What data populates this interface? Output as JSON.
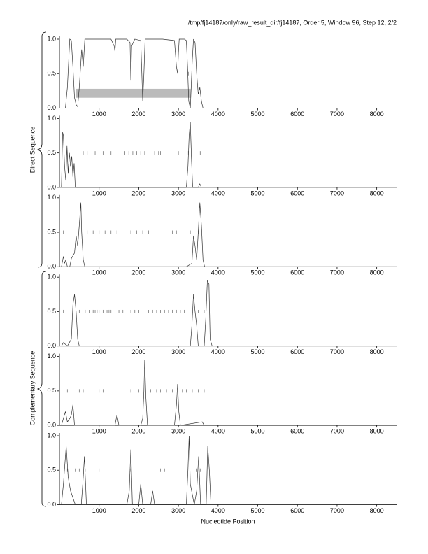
{
  "header": {
    "title": "/tmp/fj14187/only/raw_result_dir/fj14187, Order 5, Window 96, Step 12, 2/2"
  },
  "y_groups": [
    "Direct Sequence",
    "Complementary Sequence"
  ],
  "xlabel": "Nucleotide Position",
  "chart_data": [
    {
      "type": "line",
      "xlim": [
        0,
        8500
      ],
      "ylim": [
        0,
        1
      ],
      "xticks": [
        1000,
        2000,
        3000,
        4000,
        5000,
        6000,
        7000,
        8000
      ],
      "yticks": [
        {
          "value": 0,
          "label": "0.0"
        },
        0.5,
        {
          "value": 1,
          "label": "1.0"
        }
      ],
      "series": [
        {
          "color": "#333333",
          "x": [
            50,
            150,
            200,
            260,
            300,
            340,
            380,
            420,
            460,
            500,
            560,
            600,
            640,
            680,
            720,
            1000,
            1300,
            1380,
            1400,
            1420,
            1700,
            1780,
            1800,
            1820,
            1900,
            2050,
            2100,
            2130,
            2160,
            2200,
            2600,
            2900,
            2950,
            2980,
            3000,
            3020,
            3150,
            3200,
            3230,
            3260,
            3300,
            3350,
            3380,
            3420,
            3460,
            3500,
            3540,
            3580,
            3620,
            3660
          ],
          "values": [
            0,
            0,
            0.3,
            1.0,
            0.98,
            0.6,
            0.15,
            0.05,
            0.02,
            0.3,
            0.85,
            0.6,
            1.0,
            1.0,
            1.0,
            1.0,
            1.0,
            0.9,
            0.82,
            1.0,
            1.0,
            0.95,
            0.4,
            0.9,
            1.0,
            0.98,
            0.1,
            0.5,
            1.0,
            1.0,
            1.0,
            0.98,
            0.6,
            0.5,
            0.8,
            1.0,
            1.0,
            0.98,
            0.6,
            0.1,
            0.0,
            0.7,
            1.0,
            0.95,
            0.5,
            0.2,
            0.3,
            0.1,
            0.0,
            0.0
          ]
        }
      ],
      "markers": [
        170,
        3250
      ],
      "region": {
        "x": [
          420,
          3310
        ],
        "y": [
          0.15,
          0.28
        ],
        "color": "#bbbbbb"
      }
    },
    {
      "type": "line",
      "xlim": [
        0,
        8500
      ],
      "ylim": [
        0,
        1
      ],
      "xticks": [
        1000,
        2000,
        3000,
        4000,
        5000,
        6000,
        7000,
        8000
      ],
      "yticks": [
        {
          "value": 0,
          "label": "0.0"
        },
        0.5,
        {
          "value": 1,
          "label": "1.0"
        }
      ],
      "series": [
        {
          "color": "#333333",
          "x": [
            50,
            80,
            100,
            130,
            160,
            190,
            220,
            250,
            280,
            310,
            340,
            370,
            400,
            3200,
            3240,
            3270,
            3300,
            3330,
            3360,
            3500,
            3540,
            3580
          ],
          "values": [
            0,
            0.8,
            0.75,
            0.3,
            0.1,
            0.6,
            0.2,
            0.5,
            0.3,
            0.45,
            0.15,
            0.35,
            0,
            0,
            0.3,
            0.75,
            0.95,
            0.4,
            0,
            0,
            0.05,
            0
          ]
        }
      ],
      "markers": [
        600,
        700,
        900,
        1100,
        1300,
        1650,
        1750,
        1850,
        1950,
        2050,
        2150,
        2400,
        2500,
        2550,
        3000,
        3250,
        3550
      ]
    },
    {
      "type": "line",
      "xlim": [
        0,
        8500
      ],
      "ylim": [
        0,
        1
      ],
      "xticks": [
        1000,
        2000,
        3000,
        4000,
        5000,
        6000,
        7000,
        8000
      ],
      "yticks": [
        {
          "value": 0,
          "label": "0.0"
        },
        0.5,
        {
          "value": 1,
          "label": "1.0"
        }
      ],
      "series": [
        {
          "color": "#333333",
          "x": [
            50,
            100,
            130,
            160,
            200,
            260,
            300,
            380,
            420,
            460,
            500,
            540,
            560,
            600,
            640,
            3200,
            3340,
            3380,
            3420,
            3460,
            3500,
            3540,
            3580,
            3620,
            3660
          ],
          "values": [
            0,
            0.15,
            0.05,
            0.1,
            0,
            0,
            0.12,
            0.2,
            0.45,
            0.3,
            0.6,
            0.93,
            0.5,
            0.1,
            0,
            0,
            0.05,
            0.45,
            0.3,
            0.1,
            0.5,
            0.93,
            0.6,
            0.1,
            0
          ]
        }
      ],
      "markers": [
        100,
        700,
        850,
        1000,
        1150,
        1300,
        1450,
        1700,
        1800,
        1950,
        2100,
        2250,
        2850,
        2950,
        3300,
        3500
      ]
    },
    {
      "type": "line",
      "xlim": [
        0,
        8500
      ],
      "ylim": [
        0,
        1
      ],
      "xticks": [
        1000,
        2000,
        3000,
        4000,
        5000,
        6000,
        7000,
        8000
      ],
      "yticks": [
        {
          "value": 0,
          "label": "0.0"
        },
        0.5,
        {
          "value": 1,
          "label": "1.0"
        }
      ],
      "series": [
        {
          "color": "#333333",
          "x": [
            50,
            100,
            200,
            300,
            340,
            380,
            420,
            460,
            500,
            3300,
            3340,
            3380,
            3420,
            3460,
            3500,
            3650,
            3690,
            3730,
            3770,
            3800,
            3850
          ],
          "values": [
            0,
            0.05,
            0,
            0.1,
            0.6,
            0.75,
            0.5,
            0.1,
            0,
            0,
            0.3,
            0.75,
            0.5,
            0.3,
            0,
            0,
            0.4,
            0.95,
            0.9,
            0.1,
            0
          ]
        }
      ],
      "markers": [
        100,
        500,
        650,
        750,
        850,
        900,
        950,
        1000,
        1050,
        1100,
        1200,
        1250,
        1300,
        1400,
        1500,
        1600,
        1700,
        1800,
        1900,
        2000,
        2250,
        2350,
        2450,
        2550,
        2650,
        2750,
        2850,
        2950,
        3050,
        3150,
        3500,
        3650
      ]
    },
    {
      "type": "line",
      "xlim": [
        0,
        8500
      ],
      "ylim": [
        0,
        1
      ],
      "xticks": [
        1000,
        2000,
        3000,
        4000,
        5000,
        6000,
        7000,
        8000
      ],
      "yticks": [
        {
          "value": 0,
          "label": "0.0"
        },
        0.5,
        {
          "value": 1,
          "label": "1.0"
        }
      ],
      "series": [
        {
          "color": "#333333",
          "x": [
            50,
            100,
            150,
            200,
            260,
            300,
            340,
            380,
            1400,
            1450,
            1500,
            2050,
            2100,
            2130,
            2150,
            2180,
            2220,
            2900,
            2950,
            2980,
            3010,
            3050,
            3600,
            3650
          ],
          "values": [
            0,
            0.1,
            0.2,
            0.05,
            0.1,
            0.15,
            0.3,
            0,
            0,
            0.15,
            0,
            0,
            0.1,
            0.5,
            0.95,
            0.4,
            0,
            0,
            0.3,
            0.6,
            0.2,
            0,
            0.05,
            0
          ]
        }
      ],
      "markers": [
        200,
        500,
        600,
        1000,
        1100,
        1800,
        2000,
        2300,
        2450,
        2550,
        2700,
        2850,
        3100,
        3200,
        3350,
        3500,
        3650
      ]
    },
    {
      "type": "line",
      "xlim": [
        0,
        8500
      ],
      "ylim": [
        0,
        1
      ],
      "xticks": [
        1000,
        2000,
        3000,
        4000,
        5000,
        6000,
        7000,
        8000
      ],
      "yticks": [
        {
          "value": 0,
          "label": "0.0"
        },
        0.5,
        {
          "value": 1,
          "label": "1.0"
        }
      ],
      "series": [
        {
          "color": "#333333",
          "x": [
            50,
            100,
            170,
            220,
            280,
            340,
            400,
            550,
            600,
            630,
            680,
            1700,
            1760,
            1800,
            1840,
            2000,
            2050,
            2100,
            2300,
            2350,
            2400,
            3200,
            3240,
            3270,
            3300,
            3400,
            3460,
            3510,
            3560,
            3700,
            3740,
            3780,
            3820
          ],
          "values": [
            0,
            0.3,
            0.85,
            0.4,
            0.2,
            0.1,
            0,
            0,
            0.4,
            0.7,
            0,
            0,
            0.2,
            0.8,
            0,
            0,
            0.3,
            0,
            0,
            0.2,
            0,
            0,
            0.5,
            1.0,
            0.3,
            0,
            0.2,
            0.7,
            0,
            0,
            0.85,
            0.5,
            0
          ]
        }
      ],
      "markers": [
        200,
        400,
        500,
        650,
        1000,
        1700,
        1800,
        2550,
        2650,
        3450,
        3550
      ]
    }
  ]
}
